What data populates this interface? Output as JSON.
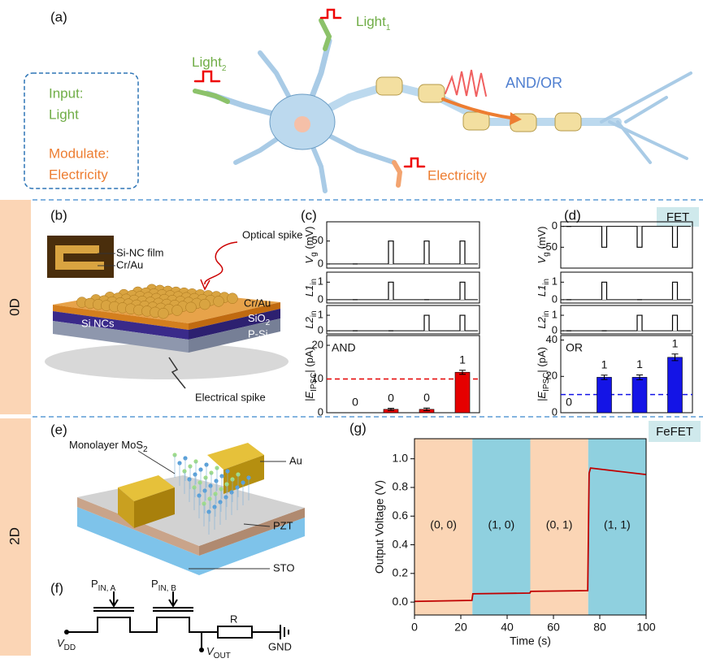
{
  "panel_a": {
    "label": "(a)",
    "input_title": "Input:",
    "input_value": "Light",
    "modulate_title": "Modulate:",
    "modulate_value": "Electricity",
    "light1": {
      "main": "Light",
      "sub": "1"
    },
    "light2": {
      "main": "Light",
      "sub": "2"
    },
    "electricity": "Electricity",
    "logic": "AND/OR"
  },
  "rows": [
    {
      "label": "0D",
      "tag": "FET"
    },
    {
      "label": "2D",
      "tag": "FeFET"
    }
  ],
  "panel_b": {
    "label": "(b)",
    "film": "Si-NC film",
    "contact": "Cr/Au",
    "optical": "Optical spike",
    "ncs": "Si NCs",
    "layer_top": "Cr/Au",
    "layer_oxide": {
      "main": "SiO",
      "sub": "2"
    },
    "substrate": "P-Si",
    "electrical": "Electrical spike"
  },
  "panel_c": {
    "label": "(c)",
    "chart": {
      "type": "logic-pulses",
      "vg": {
        "axis_label": {
          "main": "V",
          "sub": "g",
          "unit": " (mV)"
        },
        "values": [
          0,
          50,
          50,
          50
        ],
        "ylim": [
          -9,
          92
        ],
        "yticks": [
          0,
          50
        ]
      },
      "l1": {
        "axis_label": {
          "main": "L1",
          "sub": "in"
        },
        "values": [
          0,
          1,
          0,
          1
        ],
        "ylim": [
          -0.19,
          1.57
        ],
        "yticks": [
          0,
          1
        ]
      },
      "l2": {
        "axis_label": {
          "main": "L2",
          "sub": "in"
        },
        "values": [
          0,
          0,
          1,
          1
        ],
        "ylim": [
          -0.2,
          1.63
        ],
        "yticks": [
          0,
          1
        ]
      },
      "output": {
        "axis_label": {
          "main": "|E",
          "sub": "IPSC",
          "unit": "| (pA)"
        },
        "logic": "AND",
        "values": [
          0,
          1,
          1,
          12
        ],
        "errors": [
          0,
          0.3,
          0.4,
          0.6
        ],
        "outputs": [
          0,
          0,
          0,
          1
        ],
        "threshold": 10,
        "color": "#e50000",
        "ylim": [
          0,
          22.9
        ],
        "yticks": [
          0,
          10,
          20
        ]
      }
    }
  },
  "panel_d": {
    "label": "(d)",
    "chart": {
      "type": "logic-pulses",
      "vg": {
        "axis_label": {
          "main": "V",
          "sub": "g",
          "unit": " (mV)"
        },
        "values": [
          0,
          -50,
          -50,
          -50
        ],
        "ylim": [
          -100,
          11
        ],
        "yticks": [
          -50,
          0
        ]
      },
      "l1": {
        "axis_label": {
          "main": "L1",
          "sub": "in"
        },
        "values": [
          0,
          1,
          0,
          1
        ],
        "ylim": [
          -0.19,
          1.57
        ],
        "yticks": [
          0,
          1
        ]
      },
      "l2": {
        "axis_label": {
          "main": "L2",
          "sub": "in"
        },
        "values": [
          0,
          0,
          1,
          1
        ],
        "ylim": [
          -0.2,
          1.63
        ],
        "yticks": [
          0,
          1
        ]
      },
      "output": {
        "axis_label": {
          "main": "|E",
          "sub": "IPSC",
          "unit": "| (pA)"
        },
        "logic": "OR",
        "values": [
          0,
          19.5,
          19.5,
          30.5
        ],
        "errors": [
          0,
          1.2,
          1.3,
          1.8
        ],
        "outputs": [
          0,
          1,
          1,
          1
        ],
        "threshold": 10,
        "color": "#1414e6",
        "ylim": [
          0,
          42.5
        ],
        "yticks": [
          0,
          20,
          40
        ]
      }
    }
  },
  "panel_e": {
    "label": "(e)",
    "channel": {
      "main": "Monolayer MoS",
      "sub": "2"
    },
    "electrode": "Au",
    "ferro": "PZT",
    "substrate": "STO"
  },
  "panel_f": {
    "label": "(f)",
    "gate_a": {
      "main": "P",
      "sub": "IN, A"
    },
    "gate_b": {
      "main": "P",
      "sub": "IN, B"
    },
    "resistor": "R",
    "vdd": {
      "main": "V",
      "sub": "DD"
    },
    "vout": {
      "main": "V",
      "sub": "OUT"
    },
    "ground": "GND"
  },
  "panel_g": {
    "label": "(g)",
    "chart": {
      "type": "line",
      "x_label": "Time (s)",
      "y_label": "Output Voltage (V)",
      "xlim": [
        0,
        100
      ],
      "ylim": [
        -0.09,
        1.14
      ],
      "xticks": [
        0,
        20,
        40,
        60,
        80,
        100
      ],
      "yticks": [
        {
          "value": 0,
          "label": "0.0"
        },
        {
          "value": 0.2,
          "label": "0.2"
        },
        {
          "value": 0.4,
          "label": "0.4"
        },
        {
          "value": 0.6,
          "label": "0.6"
        },
        {
          "value": 0.8,
          "label": "0.8"
        },
        {
          "value": 1,
          "label": "1.0"
        }
      ],
      "regions": [
        {
          "label": "(0, 0)",
          "range": [
            0,
            25
          ],
          "color": "#fbd5b5"
        },
        {
          "label": "(1, 0)",
          "range": [
            25,
            50
          ],
          "color": "#8fd0df"
        },
        {
          "label": "(0, 1)",
          "range": [
            50,
            75
          ],
          "color": "#fbd5b5"
        },
        {
          "label": "(1, 1)",
          "range": [
            75,
            100
          ],
          "color": "#8fd0df"
        }
      ],
      "series": [
        {
          "color": "#c00000",
          "x": [
            0,
            24.8,
            25.2,
            49.8,
            50.2,
            74.8,
            75.4,
            76,
            100
          ],
          "values": [
            0.005,
            0.012,
            0.058,
            0.063,
            0.075,
            0.08,
            0.9,
            0.935,
            0.89
          ]
        }
      ]
    }
  }
}
